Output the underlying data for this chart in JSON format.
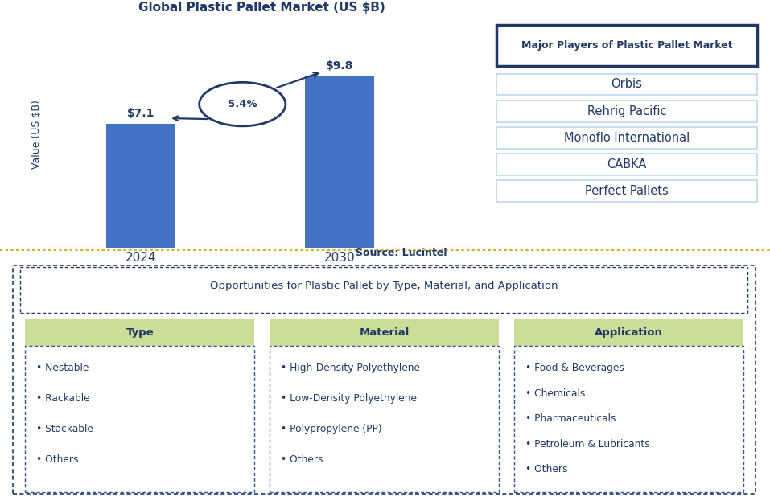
{
  "title": "Global Plastic Pallet Market (US $B)",
  "bar_years": [
    "2024",
    "2030"
  ],
  "bar_values": [
    7.1,
    9.8
  ],
  "bar_labels": [
    "$7.1",
    "$9.8"
  ],
  "bar_color": "#4472C4",
  "ylabel": "Value (US $B)",
  "source_text": "Source: Lucintel",
  "cagr_text": "5.4%",
  "major_players_title": "Major Players of Plastic Pallet Market",
  "major_players": [
    "Orbis",
    "Rehrig Pacific",
    "Monoflo International",
    "CABKA",
    "Perfect Pallets"
  ],
  "opportunities_title": "Opportunities for Plastic Pallet by Type, Material, and Application",
  "col_headers": [
    "Type",
    "Material",
    "Application"
  ],
  "col_header_bg": "#CCDD99",
  "type_items": [
    "Nestable",
    "Rackable",
    "Stackable",
    "Others"
  ],
  "material_items": [
    "High-Density Polyethylene",
    "Low-Density Polyethylene",
    "Polypropylene (PP)",
    "Others"
  ],
  "application_items": [
    "Food & Beverages",
    "Chemicals",
    "Pharmaceuticals",
    "Petroleum & Lubricants",
    "Others"
  ],
  "dark_navy": "#1F3864",
  "medium_blue": "#2E5596",
  "light_blue_border": "#BDD7EE",
  "gold_line": "#D4A017",
  "background_white": "#FFFFFF"
}
